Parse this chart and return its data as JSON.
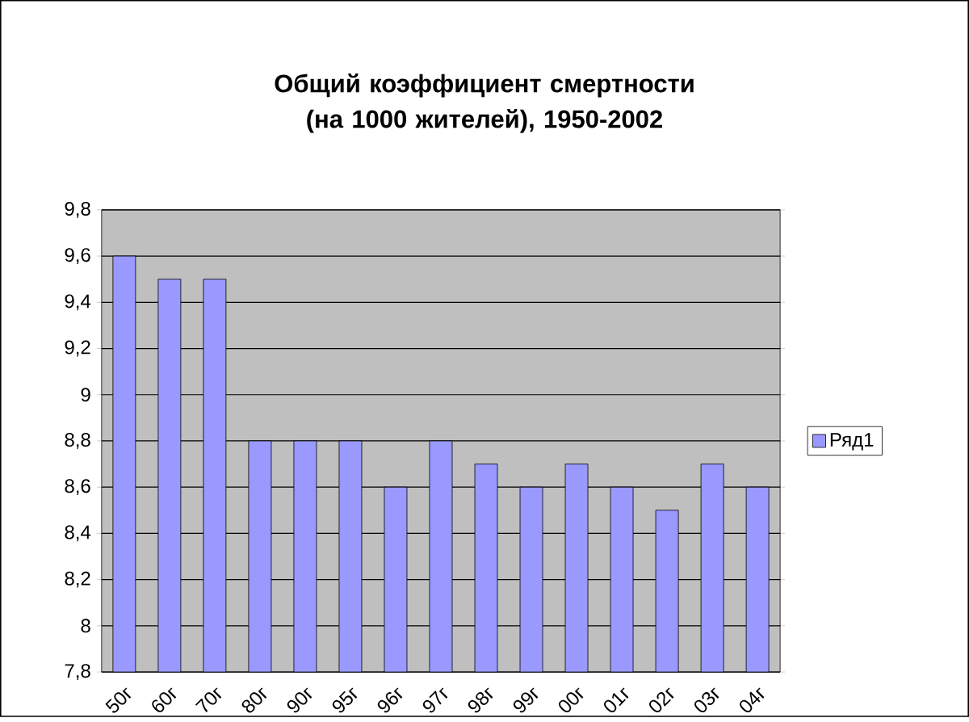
{
  "chart_data": {
    "type": "bar",
    "title": "Общий коэффициент смертности (на 1000 жителей), 1950-2002",
    "categories": [
      "50г",
      "60г",
      "70г",
      "80г",
      "90г",
      "95г",
      "96г",
      "97г",
      "98г",
      "99г",
      "00г",
      "01г",
      "02г",
      "03г",
      "04г"
    ],
    "series": [
      {
        "name": "Ряд1",
        "color": "#9999ff",
        "values": [
          9.6,
          9.5,
          9.5,
          8.8,
          8.8,
          8.8,
          8.6,
          8.8,
          8.7,
          8.6,
          8.7,
          8.6,
          8.5,
          8.7,
          8.6
        ]
      }
    ],
    "ylim": [
      7.8,
      9.8
    ],
    "yticks": [
      {
        "value": 7.8,
        "label": "7,8"
      },
      8,
      {
        "value": 8.2,
        "label": "8,2"
      },
      {
        "value": 8.4,
        "label": "8,4"
      },
      {
        "value": 8.6,
        "label": "8,6"
      },
      {
        "value": 8.8,
        "label": "8,8"
      },
      9,
      {
        "value": 9.2,
        "label": "9,2"
      },
      {
        "value": 9.4,
        "label": "9,4"
      },
      {
        "value": 9.6,
        "label": "9,6"
      },
      {
        "value": 9.8,
        "label": "9,8"
      }
    ],
    "grid": "y",
    "legend": "right"
  }
}
